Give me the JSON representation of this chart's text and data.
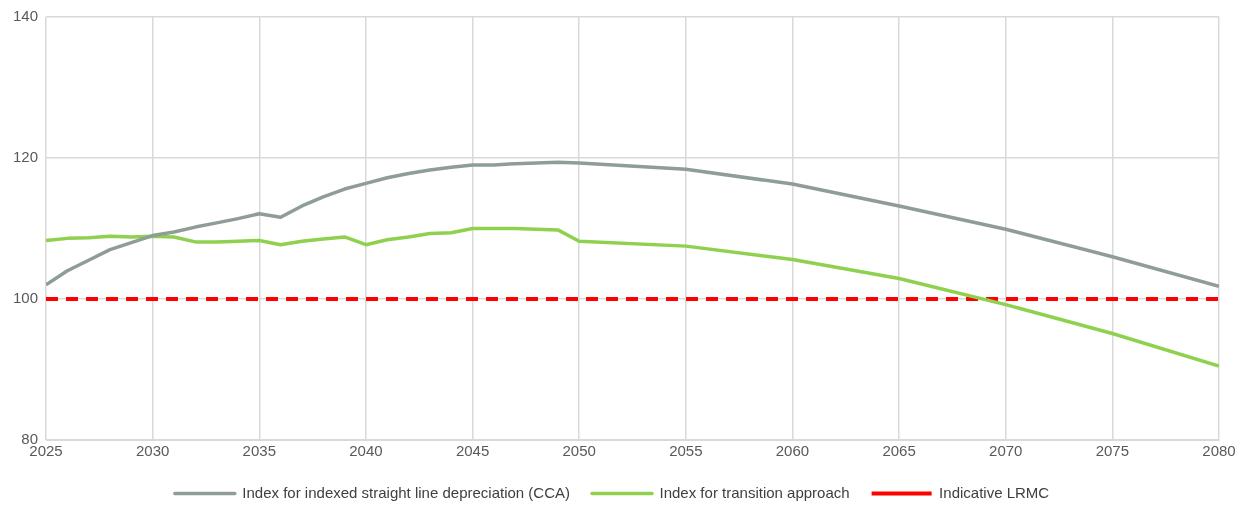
{
  "chart_data": {
    "type": "line",
    "xlim": [
      2025,
      2080
    ],
    "xticks": [
      2025,
      2030,
      2035,
      2040,
      2045,
      2050,
      2055,
      2060,
      2065,
      2070,
      2075,
      2080
    ],
    "ylim": [
      80,
      140
    ],
    "yticks": [
      80,
      100,
      120,
      140
    ],
    "grid": true,
    "legend": "bottom",
    "marker": "none",
    "series": [
      {
        "name": "Index for indexed straight line depreciation (CCA)",
        "color": "#8e9e96",
        "line_style": "solid",
        "x": [
          2025,
          2026,
          2027,
          2028,
          2029,
          2030,
          2031,
          2032,
          2033,
          2034,
          2035,
          2036,
          2037,
          2038,
          2039,
          2040,
          2041,
          2042,
          2043,
          2044,
          2045,
          2046,
          2047,
          2048,
          2049,
          2050,
          2055,
          2060,
          2065,
          2070,
          2075,
          2080
        ],
        "values": [
          102,
          104,
          105.5,
          107,
          108,
          109,
          109.5,
          110.2,
          110.8,
          111.4,
          112.1,
          111.6,
          113.2,
          114.5,
          115.6,
          116.4,
          117.2,
          117.8,
          118.3,
          118.7,
          119,
          119,
          119.2,
          119.3,
          119.4,
          119.3,
          118.4,
          116.3,
          113.2,
          109.9,
          106,
          101.8
        ]
      },
      {
        "name": "Index for transition approach",
        "color": "#8fd14f",
        "line_style": "solid",
        "x": [
          2025,
          2026,
          2027,
          2028,
          2029,
          2030,
          2031,
          2032,
          2033,
          2034,
          2035,
          2036,
          2037,
          2038,
          2039,
          2040,
          2041,
          2042,
          2043,
          2044,
          2045,
          2046,
          2047,
          2048,
          2049,
          2050,
          2055,
          2060,
          2065,
          2070,
          2075,
          2080
        ],
        "values": [
          108.3,
          108.6,
          108.7,
          108.9,
          108.8,
          108.9,
          108.8,
          108.1,
          108.1,
          108.2,
          108.3,
          107.7,
          108.2,
          108.5,
          108.8,
          107.7,
          108.4,
          108.8,
          109.3,
          109.4,
          110,
          110,
          110,
          109.9,
          109.8,
          108.2,
          107.5,
          105.6,
          102.9,
          99.2,
          95.1,
          90.5
        ]
      },
      {
        "name": "Indicative LRMC",
        "color": "#ff0000",
        "line_style": "dashed",
        "x": [
          2025,
          2080
        ],
        "values": [
          100,
          100
        ]
      }
    ]
  }
}
